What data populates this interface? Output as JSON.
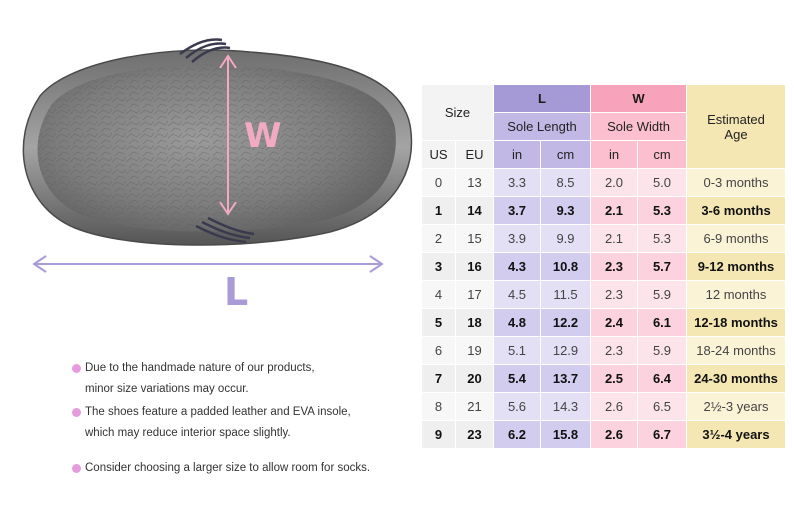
{
  "diagram": {
    "width_letter": "W",
    "length_letter": "L"
  },
  "notes": [
    {
      "lines": [
        "Due to the handmade nature of our products,",
        "minor size variations may occur."
      ]
    },
    {
      "lines": [
        "The shoes feature a padded leather and EVA insole,",
        "which may reduce interior space slightly."
      ]
    },
    {
      "lines": [
        "Consider choosing a larger size to allow room for socks."
      ]
    }
  ],
  "table": {
    "size_header": "Size",
    "l_header": "L",
    "l_sub": "Sole Length",
    "w_header": "W",
    "w_sub": "Sole Width",
    "age_header_line1": "Estimated",
    "age_header_line2": "Age",
    "us_label": "US",
    "eu_label": "EU",
    "in_label": "in",
    "cm_label": "cm",
    "rows": [
      {
        "us": "0",
        "eu": "13",
        "l_in": "3.3",
        "l_cm": "8.5",
        "w_in": "2.0",
        "w_cm": "5.0",
        "age": "0-3 months"
      },
      {
        "us": "1",
        "eu": "14",
        "l_in": "3.7",
        "l_cm": "9.3",
        "w_in": "2.1",
        "w_cm": "5.3",
        "age": "3-6 months"
      },
      {
        "us": "2",
        "eu": "15",
        "l_in": "3.9",
        "l_cm": "9.9",
        "w_in": "2.1",
        "w_cm": "5.3",
        "age": "6-9 months"
      },
      {
        "us": "3",
        "eu": "16",
        "l_in": "4.3",
        "l_cm": "10.8",
        "w_in": "2.3",
        "w_cm": "5.7",
        "age": "9-12 months"
      },
      {
        "us": "4",
        "eu": "17",
        "l_in": "4.5",
        "l_cm": "11.5",
        "w_in": "2.3",
        "w_cm": "5.9",
        "age": "12 months"
      },
      {
        "us": "5",
        "eu": "18",
        "l_in": "4.8",
        "l_cm": "12.2",
        "w_in": "2.4",
        "w_cm": "6.1",
        "age": "12-18 months"
      },
      {
        "us": "6",
        "eu": "19",
        "l_in": "5.1",
        "l_cm": "12.9",
        "w_in": "2.3",
        "w_cm": "5.9",
        "age": "18-24 months"
      },
      {
        "us": "7",
        "eu": "20",
        "l_in": "5.4",
        "l_cm": "13.7",
        "w_in": "2.5",
        "w_cm": "6.4",
        "age": "24-30 months"
      },
      {
        "us": "8",
        "eu": "21",
        "l_in": "5.6",
        "l_cm": "14.3",
        "w_in": "2.6",
        "w_cm": "6.5",
        "age": "2½-3 years"
      },
      {
        "us": "9",
        "eu": "23",
        "l_in": "6.2",
        "l_cm": "15.8",
        "w_in": "2.6",
        "w_cm": "6.7",
        "age": "3½-4 years"
      }
    ]
  },
  "colors": {
    "length_accent": "#a99bd8",
    "width_accent": "#f2a9c2",
    "age_accent": "#f5e7b3",
    "bullet": "#e79bdc"
  }
}
